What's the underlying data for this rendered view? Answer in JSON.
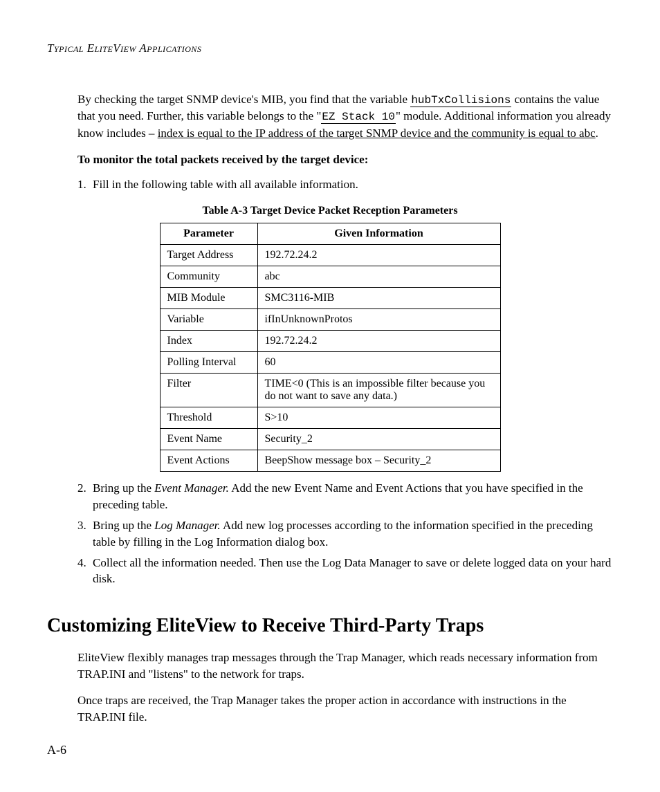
{
  "runningHead": "Typical EliteView Applications",
  "intro": {
    "pre1": "By checking the target SNMP device's MIB, you find that the variable ",
    "mono1": "hubTxCollisions",
    "mid1": " contains the value that you need. Further, this variable belongs to the \"",
    "mono2": "EZ Stack 10",
    "mid2": "\" module. Additional information you already know includes – ",
    "ul": "index is equal to the IP address of the target SNMP device and the community is equal to abc",
    "post": "."
  },
  "boldLine": "To monitor the total packets received by the target device:",
  "step1": "Fill in the following table with all available information.",
  "tableCaption": "Table A-3 Target Device Packet Reception Parameters",
  "table": {
    "headers": [
      "Parameter",
      "Given Information"
    ],
    "rows": [
      [
        "Target Address",
        "192.72.24.2"
      ],
      [
        "Community",
        "abc"
      ],
      [
        "MIB Module",
        "SMC3116-MIB"
      ],
      [
        "Variable",
        "ifInUnknownProtos"
      ],
      [
        "Index",
        "192.72.24.2"
      ],
      [
        "Polling Interval",
        "60"
      ],
      [
        "Filter",
        "TIME<0 (This is an impossible filter because you do not want to save any data.)"
      ],
      [
        "Threshold",
        "S>10"
      ],
      [
        "Event Name",
        "Security_2"
      ],
      [
        "Event Actions",
        "BeepShow message box – Security_2"
      ]
    ]
  },
  "step2": {
    "a": "Bring up the ",
    "i": "Event Manager.",
    "b": " Add the new Event Name and Event Actions that you have specified in the preceding table."
  },
  "step3": {
    "a": "Bring up the ",
    "i": "Log Manager.",
    "b": " Add new log processes according to the information specified in the preceding table by filling in the Log Information dialog box."
  },
  "step4": "Collect all the information needed. Then use the Log Data Manager to save or delete logged data on your hard disk.",
  "sectionTitle": "Customizing EliteView to Receive Third-Party Traps",
  "para1": "EliteView flexibly manages trap messages through the Trap Manager, which reads necessary information from TRAP.INI and \"listens\" to the network for traps.",
  "para2": "Once traps are received, the Trap Manager takes the proper action in accordance with instructions in the TRAP.INI file.",
  "pageNum": "A-6",
  "nums": {
    "n1": "1.",
    "n2": "2.",
    "n3": "3.",
    "n4": "4."
  }
}
